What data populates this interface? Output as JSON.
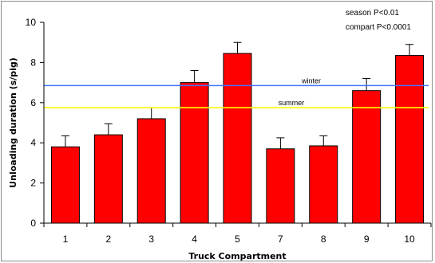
{
  "chart_data": {
    "type": "bar",
    "categories": [
      "1",
      "2",
      "3",
      "4",
      "5",
      "7",
      "8",
      "9",
      "10"
    ],
    "values": [
      3.8,
      4.4,
      5.2,
      7.0,
      8.45,
      3.7,
      3.85,
      6.6,
      8.35
    ],
    "errors": [
      0.55,
      0.55,
      0.55,
      0.6,
      0.55,
      0.55,
      0.5,
      0.6,
      0.55
    ],
    "xlabel": "Truck Compartment",
    "ylabel": "Unloading duration (s/pig)",
    "ylim": [
      0,
      10
    ],
    "yticks": [
      0,
      2,
      4,
      6,
      8,
      10
    ],
    "grid": false,
    "bar_color": "#ff0000",
    "reference_lines": [
      {
        "name": "winter",
        "value": 6.85,
        "color": "#4472ff"
      },
      {
        "name": "summer",
        "value": 5.75,
        "color": "#ffff00"
      }
    ],
    "annotations": [
      "season P<0.01",
      "compart P<0.0001"
    ]
  }
}
